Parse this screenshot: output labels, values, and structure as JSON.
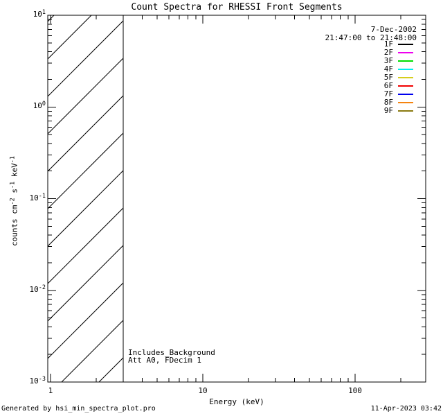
{
  "title": "Count Spectra for RHESSI Front Segments",
  "legend_block": {
    "date": "7-Dec-2002",
    "time_range": "21:47:00 to 21:48:00"
  },
  "notes": {
    "line1": "Includes_Background",
    "line2": "Att A0, FDecim 1"
  },
  "footer": {
    "left": "Generated by hsi_min_spectra_plot.pro",
    "right": "11-Apr-2023 03:42"
  },
  "colors": {
    "foreground": "#000000",
    "background": "#ffffff"
  },
  "chart_data": {
    "type": "line",
    "title": "Count Spectra for RHESSI Front Segments",
    "subtitle_date": "7-Dec-2002",
    "subtitle_time_range": "21:47:00 to 21:48:00",
    "xlabel": "Energy (keV)",
    "ylabel": "counts cm^-2 s^-1 keV^-1",
    "ylabel_parts": [
      {
        "t": "counts cm"
      },
      {
        "t": "-2",
        "sup": true
      },
      {
        "t": " s"
      },
      {
        "t": "-1",
        "sup": true
      },
      {
        "t": " keV"
      },
      {
        "t": "-1",
        "sup": true
      }
    ],
    "xscale": "log",
    "yscale": "log",
    "xlim": [
      1,
      300
    ],
    "ylim": [
      0.001,
      10
    ],
    "grid": false,
    "legend_position": "top-right",
    "x_ticks": {
      "major_values": [
        1,
        10,
        100
      ],
      "major_labels": [
        "1",
        "10",
        "100"
      ]
    },
    "y_ticks": {
      "major_values": [
        10,
        1,
        0.1,
        0.01,
        0.001
      ],
      "major_labels": [
        {
          "base": "10",
          "exp": "1"
        },
        {
          "base": "10",
          "exp": "0"
        },
        {
          "base": "10",
          "exp": "-1"
        },
        {
          "base": "10",
          "exp": "-2"
        },
        {
          "base": "10",
          "exp": "-3"
        }
      ]
    },
    "series": [
      {
        "name": "1F",
        "color": "#000000",
        "values": []
      },
      {
        "name": "2F",
        "color": "#ee00ee",
        "values": []
      },
      {
        "name": "3F",
        "color": "#00dd00",
        "values": []
      },
      {
        "name": "4F",
        "color": "#00eeee",
        "values": []
      },
      {
        "name": "5F",
        "color": "#d6ce1c",
        "values": []
      },
      {
        "name": "6F",
        "color": "#f10000",
        "values": []
      },
      {
        "name": "7F",
        "color": "#0000ee",
        "values": []
      },
      {
        "name": "8F",
        "color": "#f58410",
        "values": []
      },
      {
        "name": "9F",
        "color": "#8a7a10",
        "values": []
      }
    ],
    "excluded_band": {
      "x_from": 1,
      "x_to": 3,
      "hatch": "diagonal"
    }
  }
}
